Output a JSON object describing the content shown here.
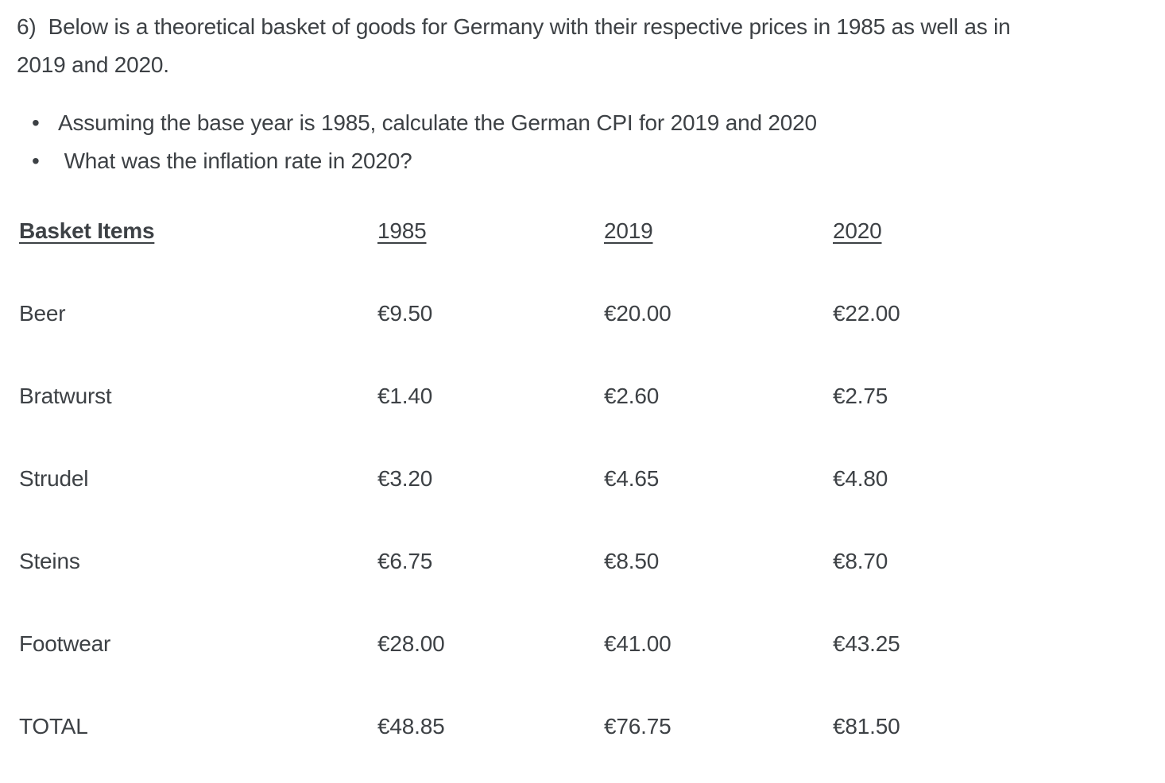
{
  "colors": {
    "text": "#3d4145",
    "background": "#ffffff"
  },
  "question": {
    "intro_lines": [
      "6)  Below is a theoretical basket of goods for Germany with their respective prices in 1985 as well as in",
      "2019 and 2020."
    ],
    "bullets": [
      "Assuming the base year is 1985, calculate the German CPI for 2019 and 2020",
      " What was the inflation rate in 2020?"
    ]
  },
  "table": {
    "headers": {
      "item": "Basket Items",
      "y1985": "1985",
      "y2019": "2019",
      "y2020": "2020"
    },
    "rows": [
      {
        "item": "Beer",
        "p1985": "€9.50",
        "p2019": "€20.00",
        "p2020": "€22.00"
      },
      {
        "item": "Bratwurst",
        "p1985": "€1.40",
        "p2019": "€2.60",
        "p2020": "€2.75"
      },
      {
        "item": "Strudel",
        "p1985": "€3.20",
        "p2019": "€4.65",
        "p2020": "€4.80"
      },
      {
        "item": "Steins",
        "p1985": "€6.75",
        "p2019": "€8.50",
        "p2020": "€8.70"
      },
      {
        "item": "Footwear",
        "p1985": "€28.00",
        "p2019": "€41.00",
        "p2020": "€43.25"
      },
      {
        "item": "TOTAL",
        "p1985": "€48.85",
        "p2019": "€76.75",
        "p2020": "€81.50"
      }
    ]
  }
}
